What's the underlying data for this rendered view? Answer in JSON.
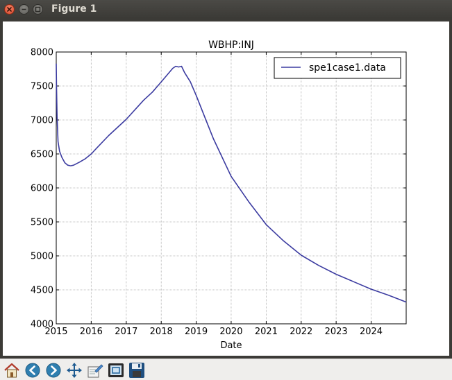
{
  "window": {
    "title": "Figure 1"
  },
  "toolbar": {
    "buttons": [
      {
        "name": "home-button",
        "icon": "home-icon"
      },
      {
        "name": "back-button",
        "icon": "arrow-left-icon"
      },
      {
        "name": "forward-button",
        "icon": "arrow-right-icon"
      },
      {
        "name": "pan-button",
        "icon": "move-arrows-icon"
      },
      {
        "name": "configure-subplots-button",
        "icon": "edit-icon"
      },
      {
        "name": "edit-axis-button",
        "icon": "zoom-rect-icon"
      },
      {
        "name": "save-button",
        "icon": "floppy-disk-icon"
      }
    ]
  },
  "chart_data": {
    "type": "line",
    "title": "WBHP:INJ",
    "xlabel": "Date",
    "ylabel": "",
    "xlim": [
      "2015-01-01",
      "2025-01-01"
    ],
    "ylim": [
      4000,
      8000
    ],
    "xtick_labels": [
      "2015",
      "2016",
      "2017",
      "2018",
      "2019",
      "2020",
      "2021",
      "2022",
      "2023",
      "2024"
    ],
    "ytick_labels": [
      "4000",
      "4500",
      "5000",
      "5500",
      "6000",
      "6500",
      "7000",
      "7500",
      "8000"
    ],
    "yticks": [
      4000,
      4500,
      5000,
      5500,
      6000,
      6500,
      7000,
      7500,
      8000
    ],
    "grid": true,
    "legend_position": "top-right",
    "colors": {
      "series": "#3b3ba0"
    },
    "series": [
      {
        "name": "spe1case1.data",
        "points": [
          [
            "2015-01-01",
            7830
          ],
          [
            "2015-01-04",
            7500
          ],
          [
            "2015-01-10",
            7050
          ],
          [
            "2015-01-20",
            6680
          ],
          [
            "2015-02-05",
            6540
          ],
          [
            "2015-03-01",
            6450
          ],
          [
            "2015-04-01",
            6370
          ],
          [
            "2015-05-01",
            6335
          ],
          [
            "2015-06-01",
            6325
          ],
          [
            "2015-07-01",
            6335
          ],
          [
            "2015-09-01",
            6380
          ],
          [
            "2015-11-01",
            6430
          ],
          [
            "2016-01-01",
            6500
          ],
          [
            "2016-03-01",
            6590
          ],
          [
            "2016-07-01",
            6770
          ],
          [
            "2017-01-01",
            7010
          ],
          [
            "2017-07-01",
            7290
          ],
          [
            "2017-10-01",
            7410
          ],
          [
            "2018-01-01",
            7560
          ],
          [
            "2018-05-01",
            7760
          ],
          [
            "2018-06-01",
            7790
          ],
          [
            "2018-07-01",
            7780
          ],
          [
            "2018-08-01",
            7790
          ],
          [
            "2018-09-01",
            7700
          ],
          [
            "2018-11-01",
            7560
          ],
          [
            "2019-01-01",
            7360
          ],
          [
            "2019-04-01",
            7040
          ],
          [
            "2019-07-01",
            6720
          ],
          [
            "2020-01-01",
            6170
          ],
          [
            "2020-07-01",
            5800
          ],
          [
            "2021-01-01",
            5460
          ],
          [
            "2021-07-01",
            5220
          ],
          [
            "2022-01-01",
            5010
          ],
          [
            "2022-07-01",
            4860
          ],
          [
            "2023-01-01",
            4730
          ],
          [
            "2023-07-01",
            4620
          ],
          [
            "2024-01-01",
            4510
          ],
          [
            "2024-07-01",
            4420
          ],
          [
            "2025-01-01",
            4320
          ]
        ]
      }
    ]
  }
}
